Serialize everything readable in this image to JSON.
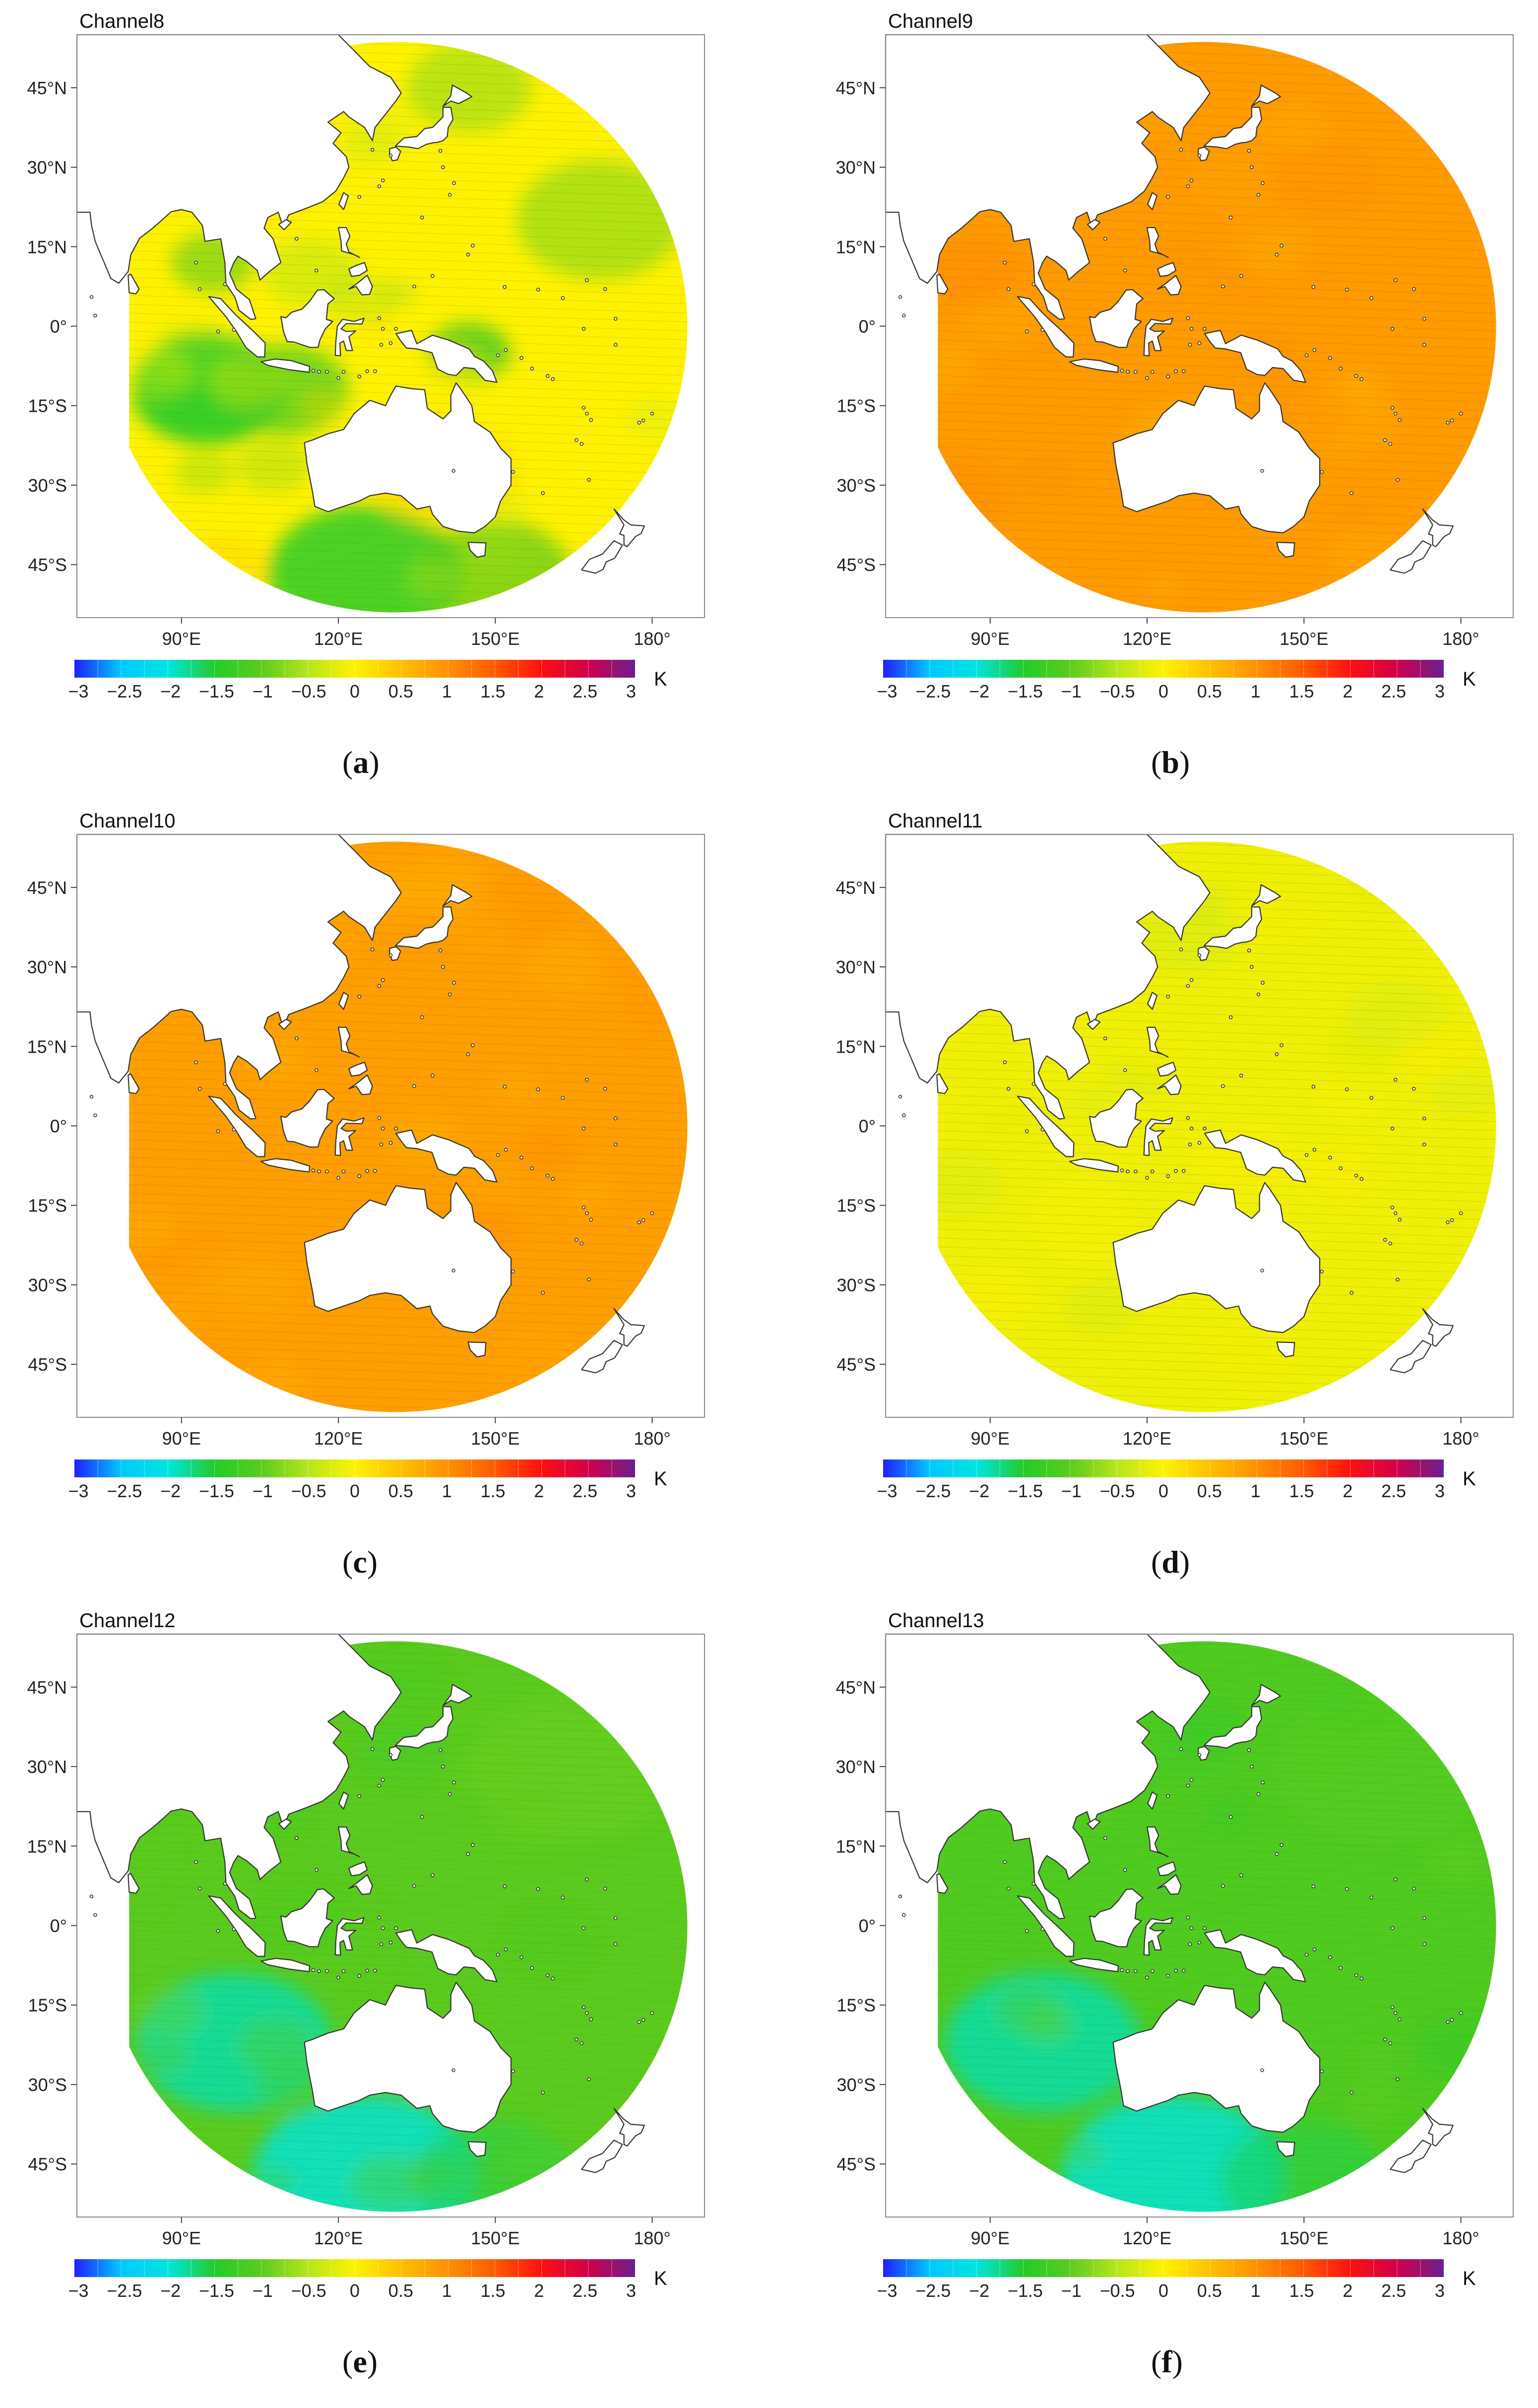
{
  "figure": {
    "map_extent": {
      "lon_min": 70,
      "lon_max": 190,
      "lat_min": -55,
      "lat_max": 55
    },
    "lat_ticks": [
      {
        "lat": 45,
        "label": "45°N"
      },
      {
        "lat": 30,
        "label": "30°N"
      },
      {
        "lat": 15,
        "label": "15°N"
      },
      {
        "lat": 0,
        "label": "0°"
      },
      {
        "lat": -15,
        "label": "15°S"
      },
      {
        "lat": -30,
        "label": "30°S"
      },
      {
        "lat": -45,
        "label": "45°S"
      }
    ],
    "lon_ticks": [
      {
        "lon": 90,
        "label": "90°E"
      },
      {
        "lon": 120,
        "label": "120°E"
      },
      {
        "lon": 150,
        "label": "150°E"
      },
      {
        "lon": 180,
        "label": "180°"
      }
    ],
    "colorbar": {
      "min": -3,
      "max": 3,
      "tick_labels": [
        "−3",
        "−2.5",
        "−2",
        "−1.5",
        "−1",
        "−0.5",
        "0",
        "0.5",
        "1",
        "1.5",
        "2",
        "2.5",
        "3"
      ],
      "unit": "K",
      "colors": [
        "#1f1fff",
        "#00c8ff",
        "#00e5e0",
        "#22cc2a",
        "#5acb1e",
        "#b6e61c",
        "#fff200",
        "#ffc000",
        "#ff9000",
        "#ff5a00",
        "#ff1010",
        "#d0004a",
        "#6a2090"
      ]
    },
    "colors": {
      "land": "#ffffff",
      "coast": "#333333",
      "frame": "#888888"
    }
  },
  "panels": [
    {
      "title": "Channel8",
      "letter": "a",
      "mean_bias": 0.0,
      "swirls": "mixed"
    },
    {
      "title": "Channel9",
      "letter": "b",
      "mean_bias": 0.9,
      "swirls": "uniform"
    },
    {
      "title": "Channel10",
      "letter": "c",
      "mean_bias": 0.85,
      "swirls": "uniform"
    },
    {
      "title": "Channel11",
      "letter": "d",
      "mean_bias": -0.1,
      "swirls": "uniform"
    },
    {
      "title": "Channel12",
      "letter": "e",
      "mean_bias": -1.0,
      "swirls": "cool-south"
    },
    {
      "title": "Channel13",
      "letter": "f",
      "mean_bias": -1.1,
      "swirls": "cool-south"
    }
  ]
}
